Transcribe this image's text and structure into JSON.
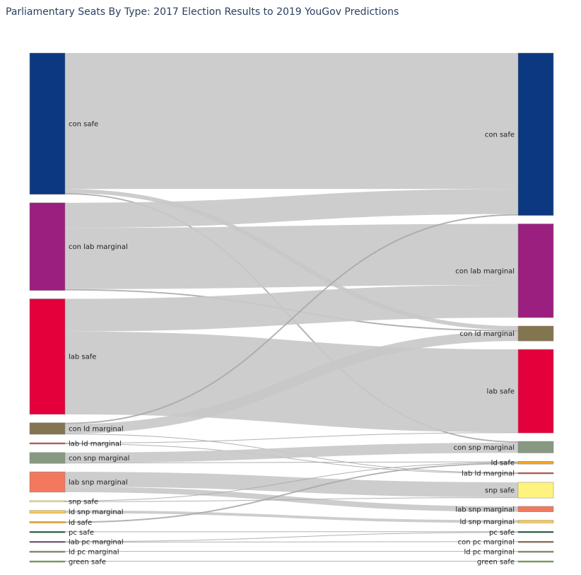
{
  "chart_data": {
    "type": "sankey",
    "title": "Parliamentary Seats By Type: 2017 Election Results to 2019 YouGov Predictions",
    "left_nodes": [
      {
        "id": "L_con_safe",
        "label": "con safe",
        "color": "#0b3880"
      },
      {
        "id": "L_con_lab",
        "label": "con lab marginal",
        "color": "#9b1f7e"
      },
      {
        "id": "L_lab_safe",
        "label": "lab safe",
        "color": "#e4003b"
      },
      {
        "id": "L_con_ld",
        "label": "con ld marginal",
        "color": "#847551"
      },
      {
        "id": "L_lab_ld",
        "label": "lab ld marginal",
        "color": "#d9453a"
      },
      {
        "id": "L_con_snp",
        "label": "con snp marginal",
        "color": "#879981"
      },
      {
        "id": "L_lab_snp",
        "label": "lab snp marginal",
        "color": "#f2795e"
      },
      {
        "id": "L_snp_safe",
        "label": "snp safe",
        "color": "#fff380"
      },
      {
        "id": "L_ld_snp",
        "label": "ld snp marginal",
        "color": "#fcc84b"
      },
      {
        "id": "L_ld_safe",
        "label": "ld safe",
        "color": "#f2a51a"
      },
      {
        "id": "L_pc_safe",
        "label": "pc safe",
        "color": "#1b5a3e"
      },
      {
        "id": "L_lab_pc",
        "label": "lab pc marginal",
        "color": "#7a4a6a"
      },
      {
        "id": "L_ld_pc",
        "label": "ld pc marginal",
        "color": "#8a8a5a"
      },
      {
        "id": "L_green_safe",
        "label": "green safe",
        "color": "#6ab023"
      }
    ],
    "right_nodes": [
      {
        "id": "R_con_safe",
        "label": "con safe",
        "color": "#0b3880"
      },
      {
        "id": "R_con_lab",
        "label": "con lab marginal",
        "color": "#9b1f7e"
      },
      {
        "id": "R_con_ld",
        "label": "con ld marginal",
        "color": "#847551"
      },
      {
        "id": "R_lab_safe",
        "label": "lab safe",
        "color": "#e4003b"
      },
      {
        "id": "R_con_snp",
        "label": "con snp marginal",
        "color": "#879981"
      },
      {
        "id": "R_ld_safe",
        "label": "ld safe",
        "color": "#f2a51a"
      },
      {
        "id": "R_lab_ld",
        "label": "lab ld marginal",
        "color": "#d9453a"
      },
      {
        "id": "R_snp_safe",
        "label": "snp safe",
        "color": "#fff380"
      },
      {
        "id": "R_lab_snp",
        "label": "lab snp marginal",
        "color": "#f2795e"
      },
      {
        "id": "R_ld_snp",
        "label": "ld snp marginal",
        "color": "#fcc84b"
      },
      {
        "id": "R_pc_safe",
        "label": "pc safe",
        "color": "#1b5a3e"
      },
      {
        "id": "R_con_pc",
        "label": "con pc marginal",
        "color": "#8a6a4a"
      },
      {
        "id": "R_ld_pc",
        "label": "ld pc marginal",
        "color": "#8a8a5a"
      },
      {
        "id": "R_green_safe",
        "label": "green safe",
        "color": "#6ab023"
      }
    ],
    "links": [
      {
        "source": "L_con_safe",
        "target": "R_con_safe",
        "value": 200
      },
      {
        "source": "L_con_safe",
        "target": "R_con_ld",
        "value": 6
      },
      {
        "source": "L_con_safe",
        "target": "R_con_snp",
        "value": 2
      },
      {
        "source": "L_con_lab",
        "target": "R_con_safe",
        "value": 37
      },
      {
        "source": "L_con_lab",
        "target": "R_con_lab",
        "value": 90
      },
      {
        "source": "L_con_lab",
        "target": "R_con_ld",
        "value": 2
      },
      {
        "source": "L_lab_safe",
        "target": "R_con_lab",
        "value": 48
      },
      {
        "source": "L_lab_safe",
        "target": "R_lab_safe",
        "value": 122
      },
      {
        "source": "L_con_ld",
        "target": "R_con_safe",
        "value": 2
      },
      {
        "source": "L_con_ld",
        "target": "R_con_ld",
        "value": 14
      },
      {
        "source": "L_con_ld",
        "target": "R_lab_ld",
        "value": 1
      },
      {
        "source": "L_lab_ld",
        "target": "R_lab_safe",
        "value": 1
      },
      {
        "source": "L_lab_ld",
        "target": "R_lab_ld",
        "value": 1
      },
      {
        "source": "L_con_snp",
        "target": "R_con_snp",
        "value": 15
      },
      {
        "source": "L_con_snp",
        "target": "R_ld_safe",
        "value": 1
      },
      {
        "source": "L_lab_snp",
        "target": "R_snp_safe",
        "value": 22
      },
      {
        "source": "L_lab_snp",
        "target": "R_lab_snp",
        "value": 8
      },
      {
        "source": "L_snp_safe",
        "target": "R_ld_safe",
        "value": 1
      },
      {
        "source": "L_snp_safe",
        "target": "R_snp_safe",
        "value": 1
      },
      {
        "source": "L_ld_snp",
        "target": "R_ld_snp",
        "value": 4
      },
      {
        "source": "L_ld_safe",
        "target": "R_ld_safe",
        "value": 2
      },
      {
        "source": "L_pc_safe",
        "target": "R_pc_safe",
        "value": 1
      },
      {
        "source": "L_lab_pc",
        "target": "R_pc_safe",
        "value": 1
      },
      {
        "source": "L_lab_pc",
        "target": "R_con_pc",
        "value": 1
      },
      {
        "source": "L_ld_pc",
        "target": "R_ld_pc",
        "value": 1
      },
      {
        "source": "L_green_safe",
        "target": "R_green_safe",
        "value": 1
      }
    ],
    "link_color": "#c8c8c8",
    "highlight_link_color": "#a8a8a8"
  }
}
